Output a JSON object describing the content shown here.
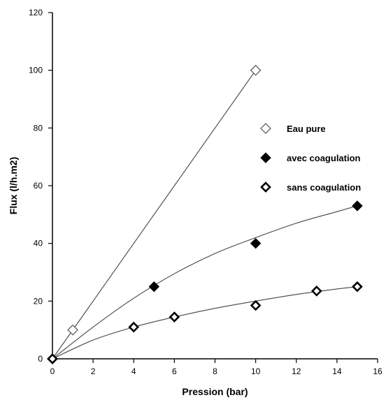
{
  "chart_data": {
    "type": "scatter",
    "xlabel": "Pression (bar)",
    "ylabel": "Flux (l/h.m2)",
    "xlim": [
      0,
      16
    ],
    "ylim": [
      0,
      120
    ],
    "xticks": [
      0,
      2,
      4,
      6,
      8,
      10,
      12,
      14,
      16
    ],
    "yticks": [
      0,
      20,
      40,
      60,
      80,
      100,
      120
    ],
    "grid": false,
    "legend_position": "right",
    "series": [
      {
        "name": "Eau pure",
        "marker": "open-diamond-thin",
        "x": [
          0,
          1,
          10
        ],
        "y": [
          0,
          10,
          100
        ],
        "fit": [
          [
            0,
            0
          ],
          [
            10,
            100
          ]
        ]
      },
      {
        "name": "avec coagulation",
        "marker": "filled-diamond",
        "x": [
          0,
          5,
          10,
          15
        ],
        "y": [
          0,
          25,
          40,
          53
        ],
        "fit": [
          [
            0,
            0
          ],
          [
            2,
            11
          ],
          [
            4,
            21
          ],
          [
            6,
            29.5
          ],
          [
            8,
            36.5
          ],
          [
            10,
            42
          ],
          [
            12,
            47
          ],
          [
            14,
            51
          ],
          [
            15,
            53
          ]
        ]
      },
      {
        "name": "sans coagulation",
        "marker": "open-diamond-bold",
        "x": [
          0,
          4,
          6,
          10,
          13,
          15
        ],
        "y": [
          0,
          11,
          14.5,
          18.5,
          23.5,
          25
        ],
        "fit": [
          [
            0,
            0
          ],
          [
            2,
            6.5
          ],
          [
            4,
            11
          ],
          [
            6,
            14.5
          ],
          [
            8,
            17.5
          ],
          [
            10,
            20
          ],
          [
            12,
            22.3
          ],
          [
            14,
            24.2
          ],
          [
            15,
            25
          ]
        ]
      }
    ]
  }
}
